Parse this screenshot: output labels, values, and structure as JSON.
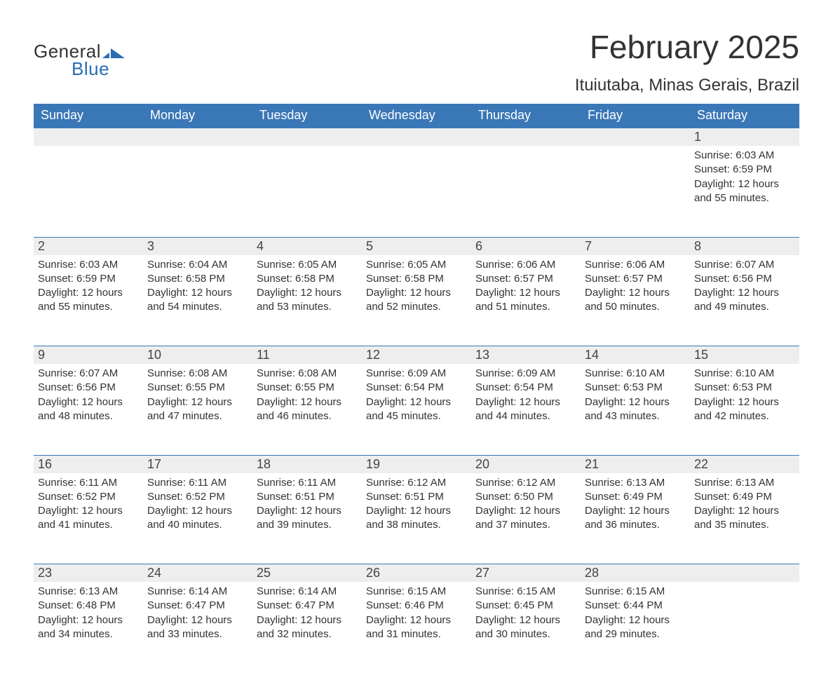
{
  "logo": {
    "text1": "General",
    "text2": "Blue",
    "icon_color": "#2a6cb0"
  },
  "title": "February 2025",
  "location": "Ituiutaba, Minas Gerais, Brazil",
  "colors": {
    "header_bg": "#3a77b7",
    "header_text": "#ffffff",
    "row_border": "#3a77b7",
    "daynum_bg": "#eeeeee",
    "body_text": "#333333"
  },
  "weekdays": [
    "Sunday",
    "Monday",
    "Tuesday",
    "Wednesday",
    "Thursday",
    "Friday",
    "Saturday"
  ],
  "weeks": [
    [
      null,
      null,
      null,
      null,
      null,
      null,
      {
        "d": "1",
        "sr": "6:03 AM",
        "ss": "6:59 PM",
        "dl": "12 hours and 55 minutes."
      }
    ],
    [
      {
        "d": "2",
        "sr": "6:03 AM",
        "ss": "6:59 PM",
        "dl": "12 hours and 55 minutes."
      },
      {
        "d": "3",
        "sr": "6:04 AM",
        "ss": "6:58 PM",
        "dl": "12 hours and 54 minutes."
      },
      {
        "d": "4",
        "sr": "6:05 AM",
        "ss": "6:58 PM",
        "dl": "12 hours and 53 minutes."
      },
      {
        "d": "5",
        "sr": "6:05 AM",
        "ss": "6:58 PM",
        "dl": "12 hours and 52 minutes."
      },
      {
        "d": "6",
        "sr": "6:06 AM",
        "ss": "6:57 PM",
        "dl": "12 hours and 51 minutes."
      },
      {
        "d": "7",
        "sr": "6:06 AM",
        "ss": "6:57 PM",
        "dl": "12 hours and 50 minutes."
      },
      {
        "d": "8",
        "sr": "6:07 AM",
        "ss": "6:56 PM",
        "dl": "12 hours and 49 minutes."
      }
    ],
    [
      {
        "d": "9",
        "sr": "6:07 AM",
        "ss": "6:56 PM",
        "dl": "12 hours and 48 minutes."
      },
      {
        "d": "10",
        "sr": "6:08 AM",
        "ss": "6:55 PM",
        "dl": "12 hours and 47 minutes."
      },
      {
        "d": "11",
        "sr": "6:08 AM",
        "ss": "6:55 PM",
        "dl": "12 hours and 46 minutes."
      },
      {
        "d": "12",
        "sr": "6:09 AM",
        "ss": "6:54 PM",
        "dl": "12 hours and 45 minutes."
      },
      {
        "d": "13",
        "sr": "6:09 AM",
        "ss": "6:54 PM",
        "dl": "12 hours and 44 minutes."
      },
      {
        "d": "14",
        "sr": "6:10 AM",
        "ss": "6:53 PM",
        "dl": "12 hours and 43 minutes."
      },
      {
        "d": "15",
        "sr": "6:10 AM",
        "ss": "6:53 PM",
        "dl": "12 hours and 42 minutes."
      }
    ],
    [
      {
        "d": "16",
        "sr": "6:11 AM",
        "ss": "6:52 PM",
        "dl": "12 hours and 41 minutes."
      },
      {
        "d": "17",
        "sr": "6:11 AM",
        "ss": "6:52 PM",
        "dl": "12 hours and 40 minutes."
      },
      {
        "d": "18",
        "sr": "6:11 AM",
        "ss": "6:51 PM",
        "dl": "12 hours and 39 minutes."
      },
      {
        "d": "19",
        "sr": "6:12 AM",
        "ss": "6:51 PM",
        "dl": "12 hours and 38 minutes."
      },
      {
        "d": "20",
        "sr": "6:12 AM",
        "ss": "6:50 PM",
        "dl": "12 hours and 37 minutes."
      },
      {
        "d": "21",
        "sr": "6:13 AM",
        "ss": "6:49 PM",
        "dl": "12 hours and 36 minutes."
      },
      {
        "d": "22",
        "sr": "6:13 AM",
        "ss": "6:49 PM",
        "dl": "12 hours and 35 minutes."
      }
    ],
    [
      {
        "d": "23",
        "sr": "6:13 AM",
        "ss": "6:48 PM",
        "dl": "12 hours and 34 minutes."
      },
      {
        "d": "24",
        "sr": "6:14 AM",
        "ss": "6:47 PM",
        "dl": "12 hours and 33 minutes."
      },
      {
        "d": "25",
        "sr": "6:14 AM",
        "ss": "6:47 PM",
        "dl": "12 hours and 32 minutes."
      },
      {
        "d": "26",
        "sr": "6:15 AM",
        "ss": "6:46 PM",
        "dl": "12 hours and 31 minutes."
      },
      {
        "d": "27",
        "sr": "6:15 AM",
        "ss": "6:45 PM",
        "dl": "12 hours and 30 minutes."
      },
      {
        "d": "28",
        "sr": "6:15 AM",
        "ss": "6:44 PM",
        "dl": "12 hours and 29 minutes."
      },
      null
    ]
  ],
  "labels": {
    "sunrise": "Sunrise: ",
    "sunset": "Sunset: ",
    "daylight": "Daylight: "
  }
}
